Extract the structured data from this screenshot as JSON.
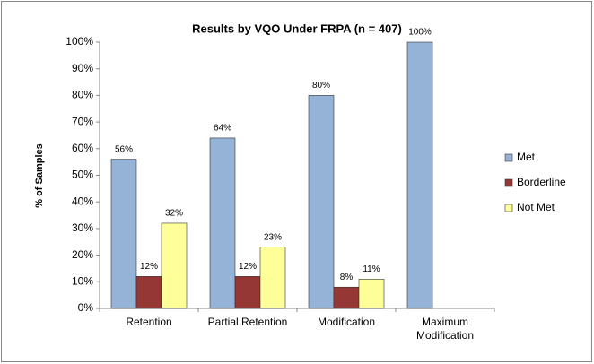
{
  "chart_data": {
    "type": "bar",
    "title": "Results by VQO Under FRPA (n = 407)",
    "ylabel": "% of Samples",
    "categories": [
      "Retention",
      "Partial Retention",
      "Modification",
      "Maximum Modification"
    ],
    "series": [
      {
        "name": "Met",
        "color": "#95b3d7",
        "values": [
          56,
          64,
          80,
          100
        ],
        "value_labels": [
          "56%",
          "64%",
          "80%",
          "100%"
        ]
      },
      {
        "name": "Borderline",
        "color": "#953735",
        "values": [
          12,
          12,
          8,
          null
        ],
        "value_labels": [
          "12%",
          "12%",
          "8%",
          null
        ]
      },
      {
        "name": "Not Met",
        "color": "#ffff99",
        "values": [
          32,
          23,
          11,
          null
        ],
        "value_labels": [
          "32%",
          "23%",
          "11%",
          null
        ]
      }
    ],
    "ylim": [
      0,
      100
    ],
    "yticks": [
      {
        "value": 0,
        "label": "0%"
      },
      {
        "value": 10,
        "label": "10%"
      },
      {
        "value": 20,
        "label": "20%"
      },
      {
        "value": 30,
        "label": "30%"
      },
      {
        "value": 40,
        "label": "40%"
      },
      {
        "value": 50,
        "label": "50%"
      },
      {
        "value": 60,
        "label": "60%"
      },
      {
        "value": 70,
        "label": "70%"
      },
      {
        "value": 80,
        "label": "80%"
      },
      {
        "value": 90,
        "label": "90%"
      },
      {
        "value": 100,
        "label": "100%"
      }
    ],
    "grid": false,
    "legend": "right"
  }
}
